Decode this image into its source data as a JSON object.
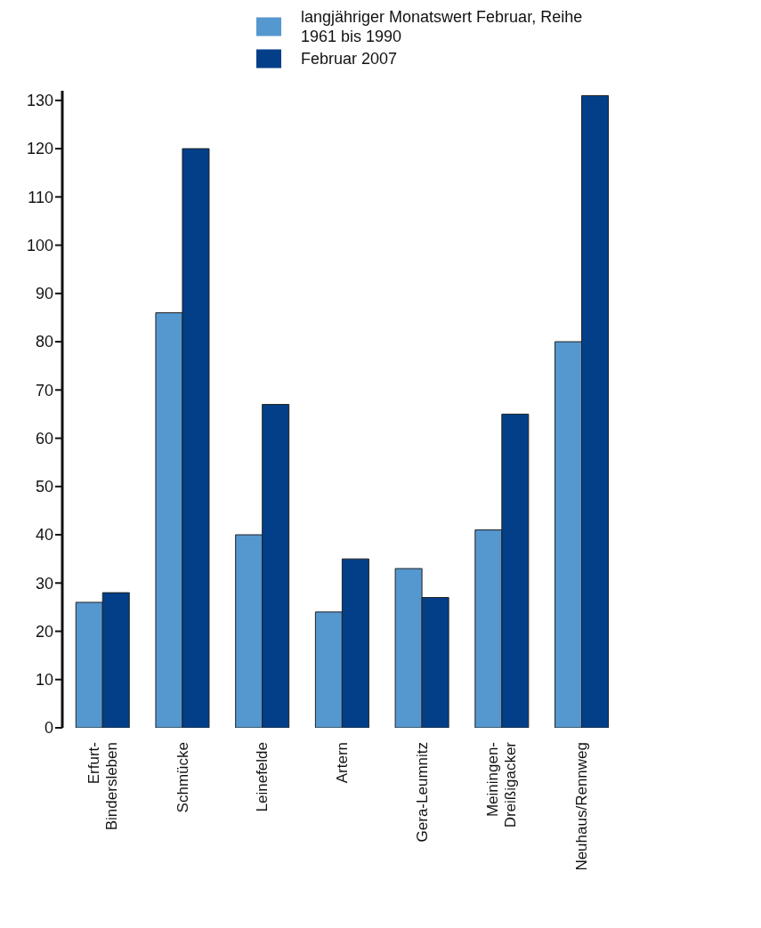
{
  "chart_data": {
    "type": "bar",
    "categories": [
      "Erfurt-\nBindersleben",
      "Schmücke",
      "Leinefelde",
      "Artern",
      "Gera-Leumnitz",
      "Meiningen-\nDreißigacker",
      "Neuhaus/Rennweg"
    ],
    "series": [
      {
        "name": "langjähriger Monatswert Februar, Reihe 1961 bis 1990",
        "color": "#5597cf",
        "values": [
          26,
          86,
          40,
          24,
          33,
          41,
          80
        ]
      },
      {
        "name": "Februar 2007",
        "color": "#023f88",
        "values": [
          28,
          120,
          67,
          35,
          27,
          65,
          131
        ]
      }
    ],
    "ylim": [
      0,
      132
    ],
    "yticks": [
      0,
      10,
      20,
      30,
      40,
      50,
      60,
      70,
      80,
      90,
      100,
      110,
      120,
      130
    ],
    "grid": false,
    "legend": "top"
  }
}
